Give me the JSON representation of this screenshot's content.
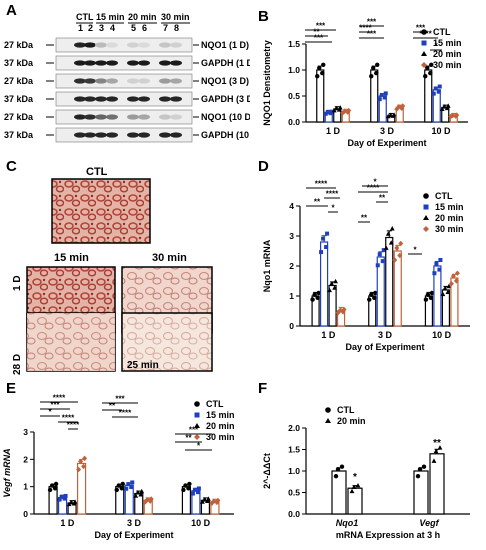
{
  "panels": {
    "A": "A",
    "B": "B",
    "C": "C",
    "D": "D",
    "E": "E",
    "F": "F"
  },
  "blot": {
    "groups": [
      "CTL",
      "15 min",
      "20 min",
      "30 min"
    ],
    "lanes": [
      "1",
      "2",
      "3",
      "4",
      "5",
      "6",
      "7",
      "8"
    ],
    "kda": [
      "27 kDa",
      "37 kDa",
      "27 kDa",
      "37 kDa",
      "27 kDa",
      "37 kDa"
    ],
    "labels": [
      "NQO1 (1 D)",
      "GAPDH (1 D)",
      "NQO1 (3 D)",
      "GAPDH (3 D)",
      "NQO1 (10 D)",
      "GAPDH (10 D)"
    ]
  },
  "histo": {
    "ctl": "CTL",
    "col15": "15 min",
    "col30": "30 min",
    "row1": "1 D",
    "row28": "28 D",
    "inset": "25 min"
  },
  "chart_data": [
    {
      "panel": "B",
      "type": "bar",
      "ylabel": "NQO1 Densitometry",
      "xlabel": "Day of Experiment",
      "ylim": [
        0,
        1.5
      ],
      "yticks": [
        "0.0",
        "0.5",
        "1.0",
        "1.5"
      ],
      "categories": [
        "1 D",
        "3 D",
        "10 D"
      ],
      "series": [
        {
          "name": "CTL",
          "color": "#000000",
          "values": [
            1.0,
            1.0,
            1.0
          ]
        },
        {
          "name": "15 min",
          "color": "#1f3fbf",
          "values": [
            0.18,
            0.5,
            0.62
          ]
        },
        {
          "name": "20 min",
          "color": "#000000",
          "values": [
            0.25,
            0.12,
            0.28
          ]
        },
        {
          "name": "30 min",
          "color": "#c0633a",
          "values": [
            0.2,
            0.28,
            0.12
          ]
        }
      ],
      "significance": [
        "***",
        "**",
        "***",
        "***",
        "****",
        "***",
        "****",
        "***",
        "*"
      ]
    },
    {
      "panel": "D",
      "type": "bar",
      "ylabel": "Nqo1 mRNA",
      "xlabel": "Day of Experiment",
      "ylim": [
        0,
        4
      ],
      "yticks": [
        "0",
        "1",
        "2",
        "3",
        "4"
      ],
      "categories": [
        "1 D",
        "3 D",
        "10 D"
      ],
      "series": [
        {
          "name": "CTL",
          "color": "#000000",
          "values": [
            1.0,
            1.0,
            1.0
          ]
        },
        {
          "name": "15 min",
          "color": "#1f3fbf",
          "values": [
            2.8,
            2.3,
            2.0
          ]
        },
        {
          "name": "20 min",
          "color": "#000000",
          "values": [
            1.35,
            2.95,
            1.2
          ]
        },
        {
          "name": "30 min",
          "color": "#c0633a",
          "values": [
            0.5,
            2.5,
            1.6
          ]
        }
      ],
      "significance": [
        "****",
        "**",
        "****",
        "*",
        "**",
        "****",
        "*",
        "**",
        "*"
      ]
    },
    {
      "panel": "E",
      "type": "bar",
      "ylabel": "Vegf mRNA",
      "xlabel": "Day of Experiment",
      "ylim": [
        0,
        3
      ],
      "yticks": [
        "0",
        "1",
        "2",
        "3"
      ],
      "categories": [
        "1 D",
        "3 D",
        "10 D"
      ],
      "series": [
        {
          "name": "CTL",
          "color": "#000000",
          "values": [
            1.0,
            1.0,
            1.0
          ]
        },
        {
          "name": "15 min",
          "color": "#1f3fbf",
          "values": [
            0.6,
            1.05,
            0.85
          ]
        },
        {
          "name": "20 min",
          "color": "#000000",
          "values": [
            0.4,
            0.75,
            0.5
          ]
        },
        {
          "name": "30 min",
          "color": "#c0633a",
          "values": [
            1.85,
            0.5,
            0.45
          ]
        }
      ],
      "significance": [
        "****",
        "***",
        "*",
        "****",
        "****",
        "***",
        "**",
        "****",
        "***",
        "**",
        "*"
      ]
    },
    {
      "panel": "F",
      "type": "bar",
      "ylabel": "2^-ΔΔCt",
      "xlabel": "mRNA Expression at 3 h",
      "ylim": [
        0,
        2.0
      ],
      "yticks": [
        "0.0",
        "0.5",
        "1.0",
        "1.5",
        "2.0"
      ],
      "categories": [
        "Nqo1",
        "Vegf"
      ],
      "series": [
        {
          "name": "CTL",
          "color": "#000000",
          "values": [
            1.0,
            1.0
          ]
        },
        {
          "name": "20 min",
          "color": "#000000",
          "values": [
            0.6,
            1.4
          ]
        }
      ],
      "significance": [
        "*",
        "**"
      ]
    }
  ]
}
